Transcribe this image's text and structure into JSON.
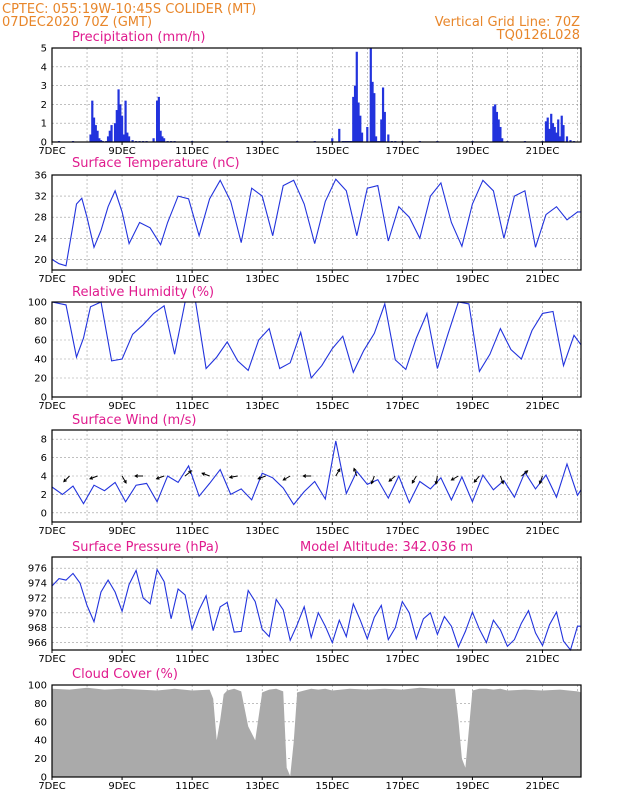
{
  "header": {
    "line1_left": "CPTEC:   055:19W-10:45S   COLIDER (MT)",
    "line2_left": "07DEC2020 70Z (GMT)",
    "right1": "Vertical Grid Line: 70Z",
    "right2": "TQ0126L028",
    "model_altitude": "Model Altitude: 342.036 m"
  },
  "colors": {
    "header": "#e8862a",
    "title": "#e01b8e",
    "series": "#2233dd",
    "cloud": "#aaaaaa",
    "grid": "#999999"
  },
  "x_tick_labels": [
    "7DEC",
    "9DEC",
    "11DEC",
    "13DEC",
    "15DEC",
    "17DEC",
    "19DEC",
    "21DEC"
  ],
  "x_range_days": [
    0,
    15.1
  ],
  "chart_data": [
    {
      "id": "precip",
      "type": "bar",
      "title": "Precipitation (mm/h)",
      "ylim": [
        0,
        5
      ],
      "yticks": [
        0,
        1,
        2,
        3,
        4,
        5
      ],
      "x": [
        0.2,
        0.6,
        1.1,
        1.15,
        1.2,
        1.25,
        1.3,
        1.35,
        1.4,
        1.45,
        1.55,
        1.6,
        1.65,
        1.7,
        1.8,
        1.85,
        1.9,
        1.95,
        2.0,
        2.05,
        2.1,
        2.15,
        2.2,
        2.3,
        2.4,
        2.5,
        2.6,
        2.7,
        2.9,
        3.0,
        3.05,
        3.1,
        3.15,
        3.2,
        3.3,
        3.4,
        3.5,
        4.0,
        5.0,
        6.0,
        7.0,
        7.5,
        8.0,
        8.2,
        8.3,
        8.35,
        8.4,
        8.45,
        8.5,
        8.55,
        8.6,
        8.65,
        8.7,
        8.75,
        8.8,
        8.85,
        9.0,
        9.1,
        9.15,
        9.2,
        9.25,
        9.3,
        9.35,
        9.4,
        9.45,
        9.5,
        9.6,
        9.7,
        9.8,
        10.0,
        10.5,
        11.0,
        12.0,
        12.6,
        12.65,
        12.7,
        12.75,
        12.8,
        12.85,
        13.0,
        13.5,
        14.0,
        14.1,
        14.15,
        14.2,
        14.25,
        14.3,
        14.35,
        14.4,
        14.45,
        14.5,
        14.55,
        14.6,
        14.7,
        14.8,
        14.9
      ],
      "values": [
        0.05,
        0.05,
        0.4,
        2.2,
        1.3,
        0.9,
        0.6,
        0.2,
        0.1,
        0.05,
        0.05,
        0.3,
        0.6,
        0.9,
        1.0,
        1.7,
        2.8,
        2.0,
        1.4,
        0.4,
        2.2,
        0.5,
        0.3,
        0.1,
        0.05,
        0.05,
        0.05,
        0.05,
        0.2,
        2.2,
        2.4,
        0.6,
        0.3,
        0.2,
        0.05,
        0.05,
        0.05,
        0.05,
        0.05,
        0.05,
        0.05,
        0.05,
        0.2,
        0.7,
        0.05,
        0.05,
        0.05,
        0.05,
        0.05,
        0.05,
        2.4,
        3.0,
        4.8,
        2.1,
        1.4,
        0.5,
        0.8,
        5.0,
        3.2,
        2.6,
        0.3,
        0.05,
        0.05,
        1.2,
        2.9,
        1.6,
        0.4,
        0.05,
        0.05,
        0.05,
        0.05,
        0.05,
        0.05,
        1.9,
        2.0,
        1.6,
        1.2,
        0.8,
        0.2,
        0.05,
        0.05,
        0.05,
        1.1,
        1.3,
        0.7,
        1.5,
        1.0,
        0.8,
        0.5,
        1.2,
        0.3,
        1.4,
        0.9,
        0.3,
        0.1,
        0.05
      ]
    },
    {
      "id": "temperature",
      "type": "line",
      "title": "Surface Temperature (nC)",
      "ylim": [
        18,
        36
      ],
      "yticks": [
        20,
        24,
        28,
        32,
        36
      ],
      "x": [
        0,
        0.2,
        0.4,
        0.6,
        0.7,
        0.85,
        1.0,
        1.2,
        1.4,
        1.6,
        1.8,
        2.0,
        2.2,
        2.5,
        2.8,
        3.1,
        3.3,
        3.6,
        3.9,
        4.2,
        4.5,
        4.8,
        5.1,
        5.4,
        5.7,
        6.0,
        6.3,
        6.6,
        6.9,
        7.2,
        7.5,
        7.8,
        8.1,
        8.4,
        8.7,
        9.0,
        9.3,
        9.6,
        9.9,
        10.2,
        10.5,
        10.8,
        11.1,
        11.4,
        11.7,
        12.0,
        12.3,
        12.6,
        12.9,
        13.2,
        13.5,
        13.8,
        14.1,
        14.4,
        14.7,
        15.0,
        15.1
      ],
      "values": [
        20,
        19.2,
        18.8,
        26.5,
        30.5,
        31.6,
        28,
        22.3,
        25.5,
        30,
        33,
        29,
        23,
        27,
        26,
        22.8,
        27,
        32,
        31.5,
        24.5,
        31.5,
        35,
        31,
        23.2,
        33.5,
        32,
        24.5,
        34,
        35,
        30.5,
        23,
        31,
        35.2,
        33,
        24.5,
        33.5,
        34,
        23.5,
        30,
        28,
        24,
        32,
        34.5,
        27,
        22.5,
        30.5,
        35,
        33,
        24,
        32,
        33,
        22.3,
        28.5,
        30,
        27.5,
        29,
        29
      ]
    },
    {
      "id": "humidity",
      "type": "line",
      "title": "Relative Humidity (%)",
      "ylim": [
        0,
        100
      ],
      "yticks": [
        0,
        20,
        40,
        60,
        80,
        100
      ],
      "x": [
        0,
        0.4,
        0.7,
        0.9,
        1.1,
        1.4,
        1.7,
        2.0,
        2.3,
        2.6,
        2.9,
        3.2,
        3.5,
        3.8,
        4.1,
        4.4,
        4.7,
        5.0,
        5.3,
        5.6,
        5.9,
        6.2,
        6.5,
        6.8,
        7.1,
        7.4,
        7.7,
        8.0,
        8.3,
        8.6,
        8.9,
        9.2,
        9.5,
        9.8,
        10.1,
        10.4,
        10.7,
        11.0,
        11.3,
        11.6,
        11.9,
        12.2,
        12.5,
        12.8,
        13.1,
        13.4,
        13.7,
        14.0,
        14.3,
        14.6,
        14.9,
        15.1
      ],
      "values": [
        100,
        97,
        42,
        62,
        95,
        100,
        38,
        40,
        66,
        76,
        88,
        96,
        45,
        100,
        100,
        30,
        42,
        58,
        38,
        28,
        60,
        72,
        30,
        36,
        68,
        20,
        33,
        51,
        64,
        26,
        49,
        67,
        98,
        39,
        29,
        62,
        88,
        30,
        66,
        100,
        98,
        27,
        45,
        72,
        50,
        40,
        70,
        88,
        90,
        33,
        65,
        55
      ]
    },
    {
      "id": "wind",
      "type": "line",
      "title": "Surface Wind (m/s)",
      "ylim": [
        -1,
        9
      ],
      "yticks": [
        0,
        2,
        4,
        6,
        8
      ],
      "x": [
        0,
        0.3,
        0.6,
        0.9,
        1.2,
        1.5,
        1.8,
        2.1,
        2.4,
        2.7,
        3.0,
        3.3,
        3.6,
        3.9,
        4.2,
        4.5,
        4.8,
        5.1,
        5.4,
        5.7,
        6.0,
        6.3,
        6.6,
        6.9,
        7.2,
        7.5,
        7.8,
        8.1,
        8.4,
        8.7,
        9.0,
        9.3,
        9.6,
        9.9,
        10.2,
        10.5,
        10.8,
        11.1,
        11.4,
        11.7,
        12.0,
        12.3,
        12.6,
        12.9,
        13.2,
        13.5,
        13.8,
        14.1,
        14.4,
        14.7,
        15.0,
        15.1
      ],
      "values": [
        2.8,
        2.0,
        2.9,
        1.0,
        3.0,
        2.4,
        3.3,
        1.2,
        3.0,
        3.2,
        1.2,
        4.0,
        3.3,
        5.1,
        1.8,
        3.2,
        4.7,
        2.0,
        2.6,
        1.4,
        4.3,
        3.8,
        2.7,
        0.9,
        2.3,
        3.4,
        1.5,
        7.8,
        2.1,
        4.5,
        3.1,
        3.6,
        1.6,
        4.0,
        1.1,
        3.4,
        2.6,
        3.8,
        1.4,
        3.9,
        1.2,
        4.1,
        2.5,
        3.5,
        1.7,
        4.4,
        2.6,
        4.1,
        1.7,
        5.3,
        1.9,
        2.5
      ],
      "arrows_x": [
        0.5,
        1.3,
        2.0,
        2.6,
        3.2,
        3.8,
        4.5,
        5.3,
        6.1,
        6.8,
        7.4,
        8.1,
        8.7,
        9.2,
        9.8,
        10.4,
        11.0,
        11.6,
        12.2,
        12.8,
        13.4,
        14.0
      ],
      "arrows_dir_deg": [
        225,
        200,
        300,
        180,
        200,
        40,
        160,
        190,
        200,
        210,
        180,
        60,
        110,
        250,
        220,
        240,
        260,
        210,
        230,
        290,
        40,
        250
      ]
    },
    {
      "id": "pressure",
      "type": "line",
      "title": "Surface Pressure (hPa)",
      "ylim": [
        965,
        977.5
      ],
      "yticks": [
        966,
        968,
        970,
        972,
        974,
        976
      ],
      "x": [
        0,
        0.2,
        0.4,
        0.6,
        0.8,
        1.0,
        1.2,
        1.4,
        1.6,
        1.8,
        2.0,
        2.2,
        2.4,
        2.6,
        2.8,
        3.0,
        3.2,
        3.4,
        3.6,
        3.8,
        4.0,
        4.2,
        4.4,
        4.6,
        4.8,
        5.0,
        5.2,
        5.4,
        5.6,
        5.8,
        6.0,
        6.2,
        6.4,
        6.6,
        6.8,
        7.0,
        7.2,
        7.4,
        7.6,
        7.8,
        8.0,
        8.2,
        8.4,
        8.6,
        8.8,
        9.0,
        9.2,
        9.4,
        9.6,
        9.8,
        10.0,
        10.2,
        10.4,
        10.6,
        10.8,
        11.0,
        11.2,
        11.4,
        11.6,
        11.8,
        12.0,
        12.2,
        12.4,
        12.6,
        12.8,
        13.0,
        13.2,
        13.4,
        13.6,
        13.8,
        14.0,
        14.2,
        14.4,
        14.6,
        14.8,
        15.0,
        15.1
      ],
      "values": [
        973.6,
        974.6,
        974.4,
        975.3,
        974,
        971,
        968.8,
        972.8,
        974.4,
        972.8,
        970.2,
        973.8,
        975.7,
        972,
        971.2,
        975.8,
        974.2,
        969.2,
        973.2,
        972.4,
        967.8,
        970.4,
        972.3,
        967.6,
        970.8,
        971.4,
        967.4,
        967.5,
        973,
        971.5,
        967.8,
        966.8,
        971.8,
        970.4,
        966.3,
        968.4,
        970.8,
        966.7,
        970,
        968.2,
        966,
        969,
        966.8,
        971.2,
        969,
        966.5,
        969.4,
        971,
        966.4,
        968,
        971.5,
        970,
        966.5,
        969.2,
        970,
        967.1,
        969.5,
        968.2,
        965.4,
        967.5,
        970.1,
        967.8,
        966,
        969,
        967.7,
        965.5,
        966.4,
        968.6,
        970.3,
        967.3,
        965.6,
        968.4,
        970.1,
        966.2,
        965,
        968.2,
        968.2
      ]
    },
    {
      "id": "cloud",
      "type": "area",
      "title": "Cloud Cover (%)",
      "ylim": [
        0,
        100
      ],
      "yticks": [
        0,
        20,
        40,
        60,
        80,
        100
      ],
      "x": [
        0,
        0.5,
        1.0,
        1.5,
        2.0,
        2.5,
        3.0,
        3.5,
        4.0,
        4.5,
        4.6,
        4.7,
        4.8,
        4.9,
        5.0,
        5.2,
        5.4,
        5.6,
        5.8,
        6.0,
        6.2,
        6.4,
        6.6,
        6.7,
        6.8,
        6.9,
        7.0,
        7.2,
        7.4,
        7.6,
        7.8,
        8.0,
        8.5,
        9.0,
        9.5,
        10.0,
        10.5,
        11.0,
        11.5,
        11.6,
        11.7,
        11.8,
        12.0,
        12.2,
        12.4,
        12.6,
        12.8,
        13.0,
        13.5,
        14.0,
        14.5,
        15.0,
        15.1
      ],
      "values": [
        96,
        95,
        97,
        95,
        96,
        95,
        94,
        96,
        94,
        95,
        85,
        40,
        62,
        90,
        94,
        96,
        93,
        55,
        40,
        92,
        95,
        96,
        93,
        10,
        1,
        38,
        92,
        94,
        96,
        95,
        96,
        94,
        96,
        95,
        96,
        95,
        97,
        96,
        96,
        62,
        20,
        10,
        94,
        96,
        96,
        95,
        96,
        94,
        95,
        94,
        95,
        93,
        92
      ]
    }
  ],
  "panels": {
    "precip": {
      "title": "Precipitation (mm/h)"
    },
    "temperature": {
      "title": "Surface Temperature (nC)"
    },
    "humidity": {
      "title": "Relative Humidity (%)"
    },
    "wind": {
      "title": "Surface Wind (m/s)"
    },
    "pressure": {
      "title": "Surface Pressure (hPa)"
    },
    "cloud": {
      "title": "Cloud Cover (%)"
    }
  }
}
